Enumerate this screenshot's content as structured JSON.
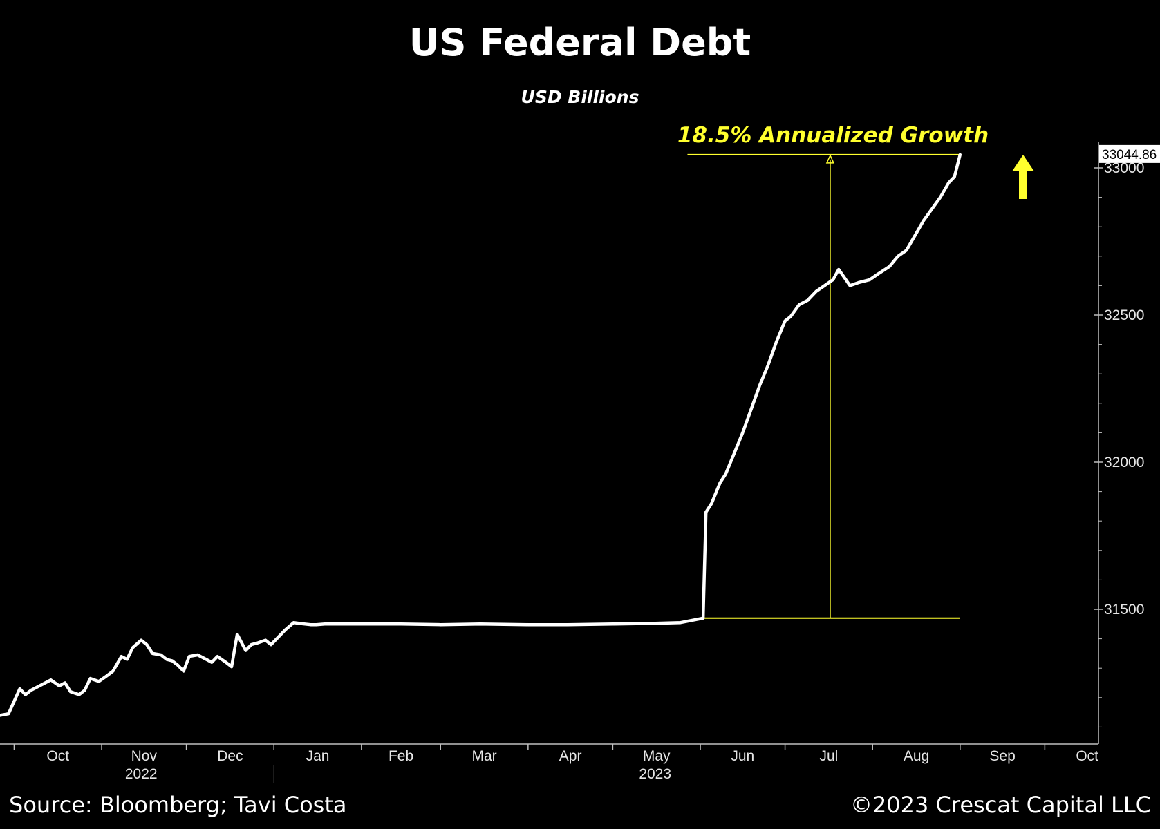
{
  "source_text": "Source: Bloomberg; Tavi Costa",
  "copyright_text": "©2023 Crescat Capital LLC",
  "colors": {
    "background": "#000000",
    "line": "#ffffff",
    "annotation": "#ffff2e",
    "axis": "#bfbfbf"
  },
  "chart_data": {
    "type": "line",
    "title": "US Federal Debt",
    "subtitle": "USD Billions",
    "annotation": "18.5% Annualized Growth",
    "annotation_range": [
      31470,
      33044.86
    ],
    "last_value_label": "33044.86",
    "xlim": [
      "2022-09-26",
      "2023-10-20"
    ],
    "ylim": [
      31000,
      33100
    ],
    "y_axis_position": "right",
    "yticks": [
      33000,
      32500,
      32000,
      31500
    ],
    "x_month_labels": [
      "Oct",
      "Nov",
      "Dec",
      "Jan",
      "Feb",
      "Mar",
      "Apr",
      "May",
      "Jun",
      "Jul",
      "Aug",
      "Sep",
      "Oct"
    ],
    "x_month_dates": [
      "2022-10-01",
      "2022-11-01",
      "2022-12-01",
      "2023-01-01",
      "2023-02-01",
      "2023-03-01",
      "2023-04-01",
      "2023-05-01",
      "2023-06-01",
      "2023-07-01",
      "2023-08-01",
      "2023-09-01",
      "2023-10-01"
    ],
    "year_labels": [
      {
        "label": "2022",
        "date": "2022-11-15"
      },
      {
        "label": "2023",
        "date": "2023-05-16"
      }
    ],
    "grid": false,
    "series": [
      {
        "x": [
          "2022-09-26",
          "2022-09-29",
          "2022-10-03",
          "2022-10-05",
          "2022-10-07",
          "2022-10-10",
          "2022-10-14",
          "2022-10-17",
          "2022-10-19",
          "2022-10-21",
          "2022-10-24",
          "2022-10-26",
          "2022-10-28",
          "2022-10-31",
          "2022-11-03",
          "2022-11-05",
          "2022-11-08",
          "2022-11-10",
          "2022-11-12",
          "2022-11-15",
          "2022-11-17",
          "2022-11-19",
          "2022-11-22",
          "2022-11-24",
          "2022-11-26",
          "2022-11-28",
          "2022-11-30",
          "2022-12-02",
          "2022-12-05",
          "2022-12-08",
          "2022-12-10",
          "2022-12-12",
          "2022-12-15",
          "2022-12-17",
          "2022-12-19",
          "2022-12-22",
          "2022-12-24",
          "2022-12-26",
          "2022-12-29",
          "2022-12-31",
          "2023-01-03",
          "2023-01-05",
          "2023-01-08",
          "2023-01-10",
          "2023-01-12",
          "2023-01-14",
          "2023-01-16",
          "2023-01-19",
          "2023-01-20",
          "2023-02-01",
          "2023-02-15",
          "2023-03-01",
          "2023-03-15",
          "2023-04-01",
          "2023-04-15",
          "2023-05-01",
          "2023-05-15",
          "2023-05-25",
          "2023-06-02",
          "2023-06-03",
          "2023-06-05",
          "2023-06-08",
          "2023-06-10",
          "2023-06-13",
          "2023-06-16",
          "2023-06-19",
          "2023-06-22",
          "2023-06-25",
          "2023-06-28",
          "2023-07-01",
          "2023-07-03",
          "2023-07-06",
          "2023-07-09",
          "2023-07-12",
          "2023-07-15",
          "2023-07-18",
          "2023-07-20",
          "2023-07-24",
          "2023-07-27",
          "2023-07-31",
          "2023-08-03",
          "2023-08-07",
          "2023-08-10",
          "2023-08-13",
          "2023-08-16",
          "2023-08-19",
          "2023-08-22",
          "2023-08-25",
          "2023-08-28",
          "2023-08-30",
          "2023-09-01"
        ],
        "y": [
          31140,
          31145,
          31230,
          31210,
          31225,
          31240,
          31260,
          31240,
          31250,
          31220,
          31210,
          31225,
          31265,
          31255,
          31275,
          31290,
          31340,
          31330,
          31370,
          31395,
          31380,
          31350,
          31345,
          31330,
          31325,
          31310,
          31290,
          31340,
          31345,
          31330,
          31320,
          31340,
          31320,
          31305,
          31415,
          31360,
          31380,
          31385,
          31395,
          31380,
          31410,
          31430,
          31455,
          31452,
          31450,
          31448,
          31448,
          31450,
          31450,
          31450,
          31450,
          31448,
          31450,
          31448,
          31448,
          31450,
          31452,
          31455,
          31470,
          31830,
          31860,
          31930,
          31960,
          32030,
          32100,
          32180,
          32260,
          32330,
          32410,
          32480,
          32495,
          32535,
          32550,
          32580,
          32600,
          32620,
          32655,
          32600,
          32610,
          32620,
          32640,
          32665,
          32700,
          32720,
          32770,
          32820,
          32860,
          32900,
          32950,
          32970,
          33044.86
        ]
      }
    ]
  }
}
